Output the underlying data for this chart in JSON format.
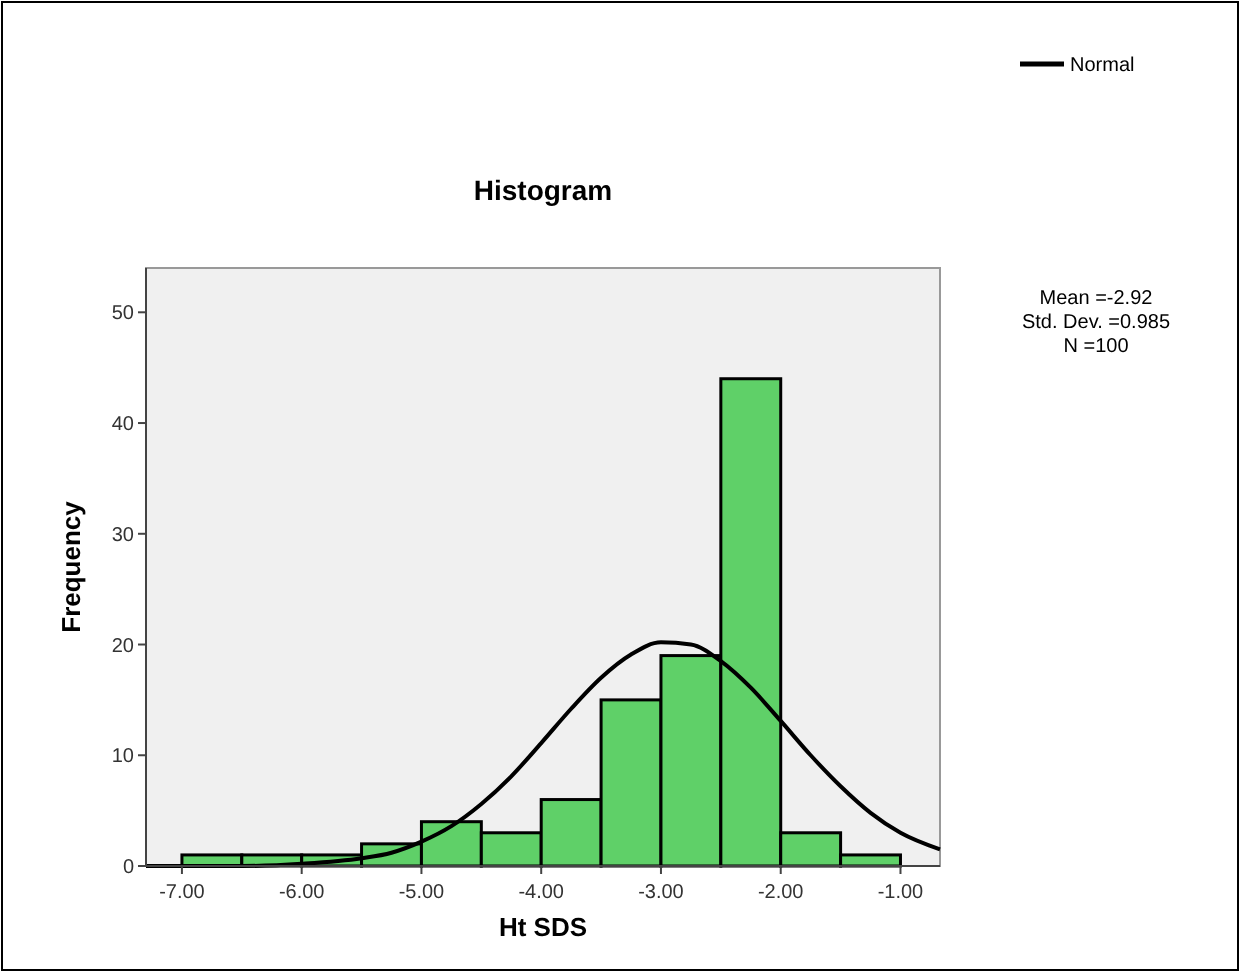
{
  "chart_data": {
    "type": "histogram",
    "title": "Histogram",
    "xlabel": "Ht SDS",
    "ylabel": "Frequency",
    "bins": [
      -7,
      -6.5,
      -6,
      -5.5,
      -5,
      -4.5,
      -4,
      -3.5,
      -3,
      -2.5,
      -2,
      -1.5,
      -1
    ],
    "values": [
      1,
      1,
      1,
      2,
      4,
      3,
      6,
      15,
      19,
      44,
      3,
      1
    ],
    "color": "#5fd068",
    "series": [
      {
        "name": "Normal",
        "type": "line",
        "color": "#000000",
        "x": [
          -7.3,
          -7,
          -6.5,
          -6,
          -5.5,
          -5.25,
          -5,
          -4.75,
          -4.5,
          -4.25,
          -4,
          -3.75,
          -3.5,
          -3.25,
          -3,
          -2.75,
          -2.5,
          -2.25,
          -2,
          -1.75,
          -1.5,
          -1.25,
          -1,
          -0.67
        ],
        "values": [
          0,
          0,
          0,
          0.2,
          0.7,
          1.2,
          2.2,
          3.6,
          5.6,
          8.1,
          11.1,
          14.2,
          17,
          19.1,
          20.2,
          20,
          18.5,
          16.1,
          13.1,
          10,
          7.2,
          4.8,
          3,
          1.5
        ]
      }
    ],
    "xlim": [
      -7.3,
      -0.67
    ],
    "ylim": [
      0,
      54
    ],
    "xticks": [
      {
        "value": -7,
        "label": "-7.00"
      },
      {
        "value": -6,
        "label": "-6.00"
      },
      {
        "value": -5,
        "label": "-5.00"
      },
      {
        "value": -4,
        "label": "-4.00"
      },
      {
        "value": -3,
        "label": "-3.00"
      },
      {
        "value": -2,
        "label": "-2.00"
      },
      {
        "value": -1,
        "label": "-1.00"
      }
    ],
    "yticks": [
      0,
      10,
      20,
      30,
      40,
      50
    ],
    "annotations": [
      "Mean =-2.92",
      "Std. Dev. =0.985",
      "N =100"
    ],
    "legend": "top right",
    "marker": "none",
    "line_style": "solid",
    "grid": false
  }
}
